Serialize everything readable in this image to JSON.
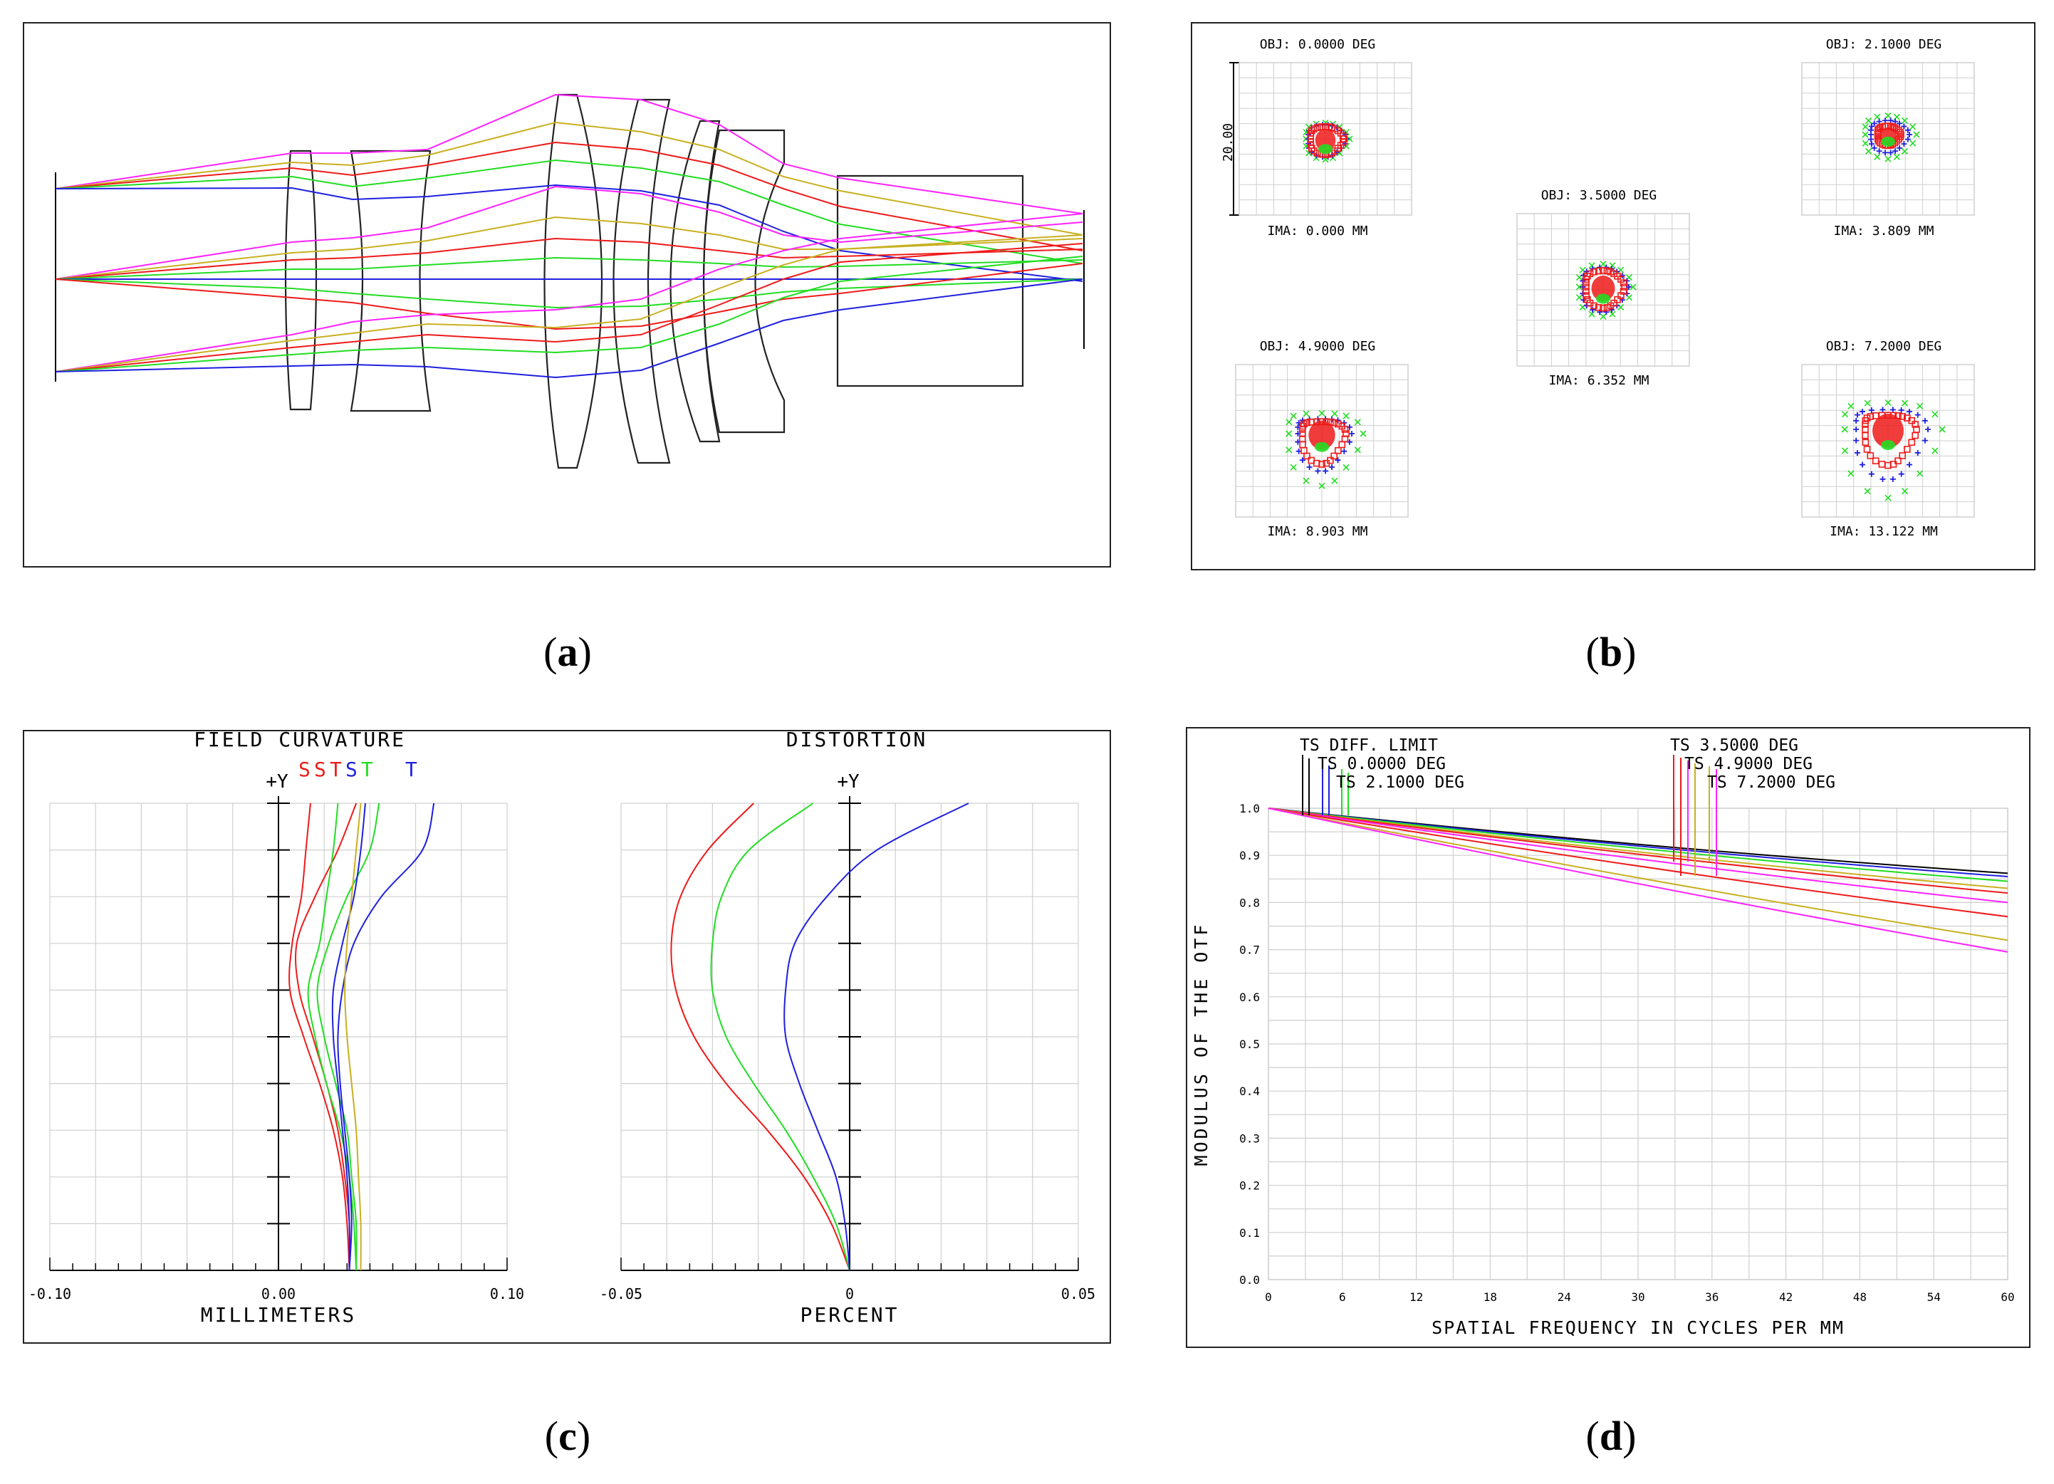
{
  "panel_labels": {
    "a": "(a)",
    "b": "(b)",
    "c": "(c)",
    "d": "(d)"
  },
  "colors": {
    "frame": "#222222",
    "grid": "#cfcfcf",
    "axis": "#000000",
    "blue": "#1f1fe0",
    "green": "#22dd22",
    "red": "#ee1a1a",
    "yellow": "#c8b020",
    "magenta": "#ff22ff",
    "black": "#000000"
  },
  "spot": {
    "scale_label": "20.00",
    "fields": [
      {
        "obj": "OBJ: 0.0000 DEG",
        "ima": "IMA: 0.000 MM"
      },
      {
        "obj": "OBJ: 2.1000 DEG",
        "ima": "IMA: 3.809 MM"
      },
      {
        "obj": "OBJ: 3.5000 DEG",
        "ima": "IMA: 6.352 MM"
      },
      {
        "obj": "OBJ: 4.9000 DEG",
        "ima": "IMA: 8.903 MM"
      },
      {
        "obj": "OBJ: 7.2000 DEG",
        "ima": "IMA: 13.122 MM"
      }
    ]
  },
  "field_curvature": {
    "title": "FIELD CURVATURE",
    "y_label": "+Y",
    "legend": [
      {
        "text": "S",
        "color": "#ee1a1a"
      },
      {
        "text": "S",
        "color": "#ee1a1a"
      },
      {
        "text": "T",
        "color": "#ee1a1a"
      },
      {
        "text": "S",
        "color": "#1f1fe0"
      },
      {
        "text": "T",
        "color": "#22dd22"
      },
      {
        "text": "T",
        "color": "#1f1fe0"
      }
    ],
    "xlabel": "MILLIMETERS",
    "ticks": [
      "-0.10",
      "0.00",
      "0.10"
    ]
  },
  "distortion": {
    "title": "DISTORTION",
    "y_label": "+Y",
    "xlabel": "PERCENT",
    "ticks": [
      "-0.05",
      "0",
      "0.05"
    ]
  },
  "chart_data": [
    {
      "type": "line",
      "title": "FIELD CURVATURE",
      "xlabel": "MILLIMETERS",
      "ylabel": "+Y",
      "xlim": [
        -0.1,
        0.1
      ],
      "ylim": [
        0,
        1
      ],
      "y": [
        0,
        0.1,
        0.2,
        0.3,
        0.4,
        0.5,
        0.6,
        0.7,
        0.8,
        0.9,
        1.0
      ],
      "series": [
        {
          "name": "S red",
          "color": "#ee1a1a",
          "values": [
            0.031,
            0.03,
            0.028,
            0.024,
            0.018,
            0.011,
            0.005,
            0.006,
            0.01,
            0.012,
            0.014
          ]
        },
        {
          "name": "T red",
          "color": "#ee1a1a",
          "values": [
            0.031,
            0.031,
            0.029,
            0.026,
            0.021,
            0.015,
            0.009,
            0.008,
            0.016,
            0.026,
            0.034
          ]
        },
        {
          "name": "S green",
          "color": "#22dd22",
          "values": [
            0.034,
            0.033,
            0.031,
            0.027,
            0.021,
            0.016,
            0.013,
            0.018,
            0.021,
            0.024,
            0.026
          ]
        },
        {
          "name": "T green",
          "color": "#22dd22",
          "values": [
            0.034,
            0.034,
            0.032,
            0.03,
            0.025,
            0.02,
            0.017,
            0.022,
            0.03,
            0.04,
            0.044
          ]
        },
        {
          "name": "S blue",
          "color": "#1f1fe0",
          "values": [
            0.031,
            0.031,
            0.03,
            0.028,
            0.026,
            0.024,
            0.024,
            0.028,
            0.033,
            0.036,
            0.038
          ]
        },
        {
          "name": "T blue",
          "color": "#1f1fe0",
          "values": [
            0.031,
            0.032,
            0.031,
            0.029,
            0.027,
            0.026,
            0.028,
            0.033,
            0.045,
            0.063,
            0.068
          ]
        },
        {
          "name": "S yellow",
          "color": "#c8b020",
          "values": [
            0.036,
            0.036,
            0.035,
            0.034,
            0.032,
            0.03,
            0.029,
            0.03,
            0.032,
            0.034,
            0.036
          ]
        }
      ]
    },
    {
      "type": "line",
      "title": "DISTORTION",
      "xlabel": "PERCENT",
      "ylabel": "+Y",
      "xlim": [
        -0.05,
        0.05
      ],
      "ylim": [
        0,
        1
      ],
      "y": [
        0,
        0.1,
        0.2,
        0.3,
        0.4,
        0.5,
        0.6,
        0.7,
        0.8,
        0.9,
        1.0
      ],
      "series": [
        {
          "name": "red",
          "color": "#ee1a1a",
          "values": [
            0,
            -0.004,
            -0.01,
            -0.018,
            -0.027,
            -0.034,
            -0.038,
            -0.039,
            -0.037,
            -0.031,
            -0.021
          ]
        },
        {
          "name": "green",
          "color": "#22dd22",
          "values": [
            0,
            -0.003,
            -0.008,
            -0.014,
            -0.021,
            -0.027,
            -0.03,
            -0.03,
            -0.028,
            -0.022,
            -0.008
          ]
        },
        {
          "name": "blue",
          "color": "#1f1fe0",
          "values": [
            0,
            -0.001,
            -0.003,
            -0.007,
            -0.011,
            -0.014,
            -0.014,
            -0.012,
            -0.005,
            0.006,
            0.026
          ]
        }
      ]
    },
    {
      "type": "line",
      "title": "",
      "xlabel": "SPATIAL FREQUENCY IN CYCLES PER MM",
      "ylabel": "MODULUS OF THE OTF",
      "xlim": [
        0,
        60
      ],
      "ylim": [
        0.0,
        1.0
      ],
      "x_ticks": [
        "0",
        "6",
        "12",
        "18",
        "24",
        "30",
        "36",
        "42",
        "48",
        "54",
        "60"
      ],
      "y_ticks": [
        "0.0",
        "0.1",
        "0.2",
        "0.3",
        "0.4",
        "0.5",
        "0.6",
        "0.7",
        "0.8",
        "0.9",
        "1.0"
      ],
      "legend": [
        "TS DIFF. LIMIT",
        "TS 0.0000 DEG",
        "TS 2.1000 DEG",
        "TS 3.5000 DEG",
        "TS 4.9000 DEG",
        "TS 7.2000 DEG"
      ],
      "series": [
        {
          "name": "DIFF. LIMIT",
          "color": "#000000",
          "x": [
            0,
            60
          ],
          "values": [
            1.0,
            0.862
          ]
        },
        {
          "name": "0.0000 DEG T",
          "color": "#1f1fe0",
          "x": [
            0,
            60
          ],
          "values": [
            1.0,
            0.855
          ]
        },
        {
          "name": "2.1000 DEG T",
          "color": "#22dd22",
          "x": [
            0,
            60
          ],
          "values": [
            1.0,
            0.845
          ]
        },
        {
          "name": "3.5000 DEG T",
          "color": "#c8b020",
          "x": [
            0,
            60
          ],
          "values": [
            1.0,
            0.83
          ]
        },
        {
          "name": "3.5000 DEG S",
          "color": "#ee1a1a",
          "x": [
            0,
            60
          ],
          "values": [
            1.0,
            0.82
          ]
        },
        {
          "name": "4.9000 DEG S",
          "color": "#ff22ff",
          "x": [
            0,
            60
          ],
          "values": [
            1.0,
            0.8
          ]
        },
        {
          "name": "4.9000 DEG T",
          "color": "#ee1a1a",
          "x": [
            0,
            60
          ],
          "values": [
            1.0,
            0.77
          ]
        },
        {
          "name": "7.2000 DEG S",
          "color": "#c8b020",
          "x": [
            0,
            60
          ],
          "values": [
            1.0,
            0.72
          ]
        },
        {
          "name": "7.2000 DEG T",
          "color": "#ff22ff",
          "x": [
            0,
            60
          ],
          "values": [
            1.0,
            0.695
          ]
        }
      ]
    }
  ]
}
